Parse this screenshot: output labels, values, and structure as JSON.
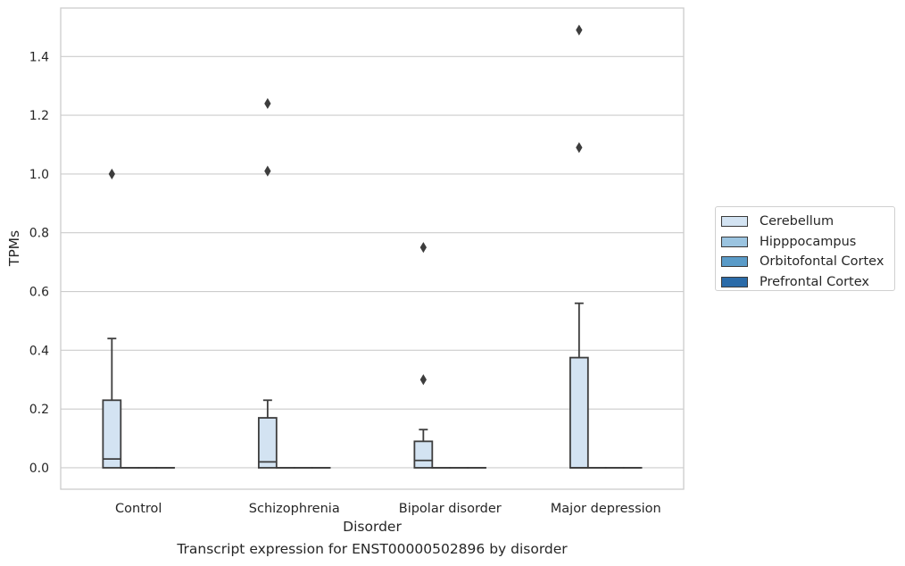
{
  "chart_data": {
    "type": "box",
    "caption": "Transcript expression for ENST00000502896 by disorder",
    "xlabel": "Disorder",
    "ylabel": "TPMs",
    "categories": [
      "Control",
      "Schizophrenia",
      "Bipolar disorder",
      "Major depression"
    ],
    "ylim": [
      -0.073,
      1.565
    ],
    "yticks": [
      0.0,
      0.2,
      0.4,
      0.6,
      0.8,
      1.0,
      1.2,
      1.4
    ],
    "ytick_labels": [
      "0.0",
      "0.2",
      "0.4",
      "0.6",
      "0.8",
      "1.0",
      "1.2",
      "1.4"
    ],
    "grid": "horizontal",
    "legend_placement": "right, outside plot",
    "series": [
      {
        "name": "Cerebellum",
        "color": "#d3e3f2",
        "boxes": [
          {
            "category": "Control",
            "min": 0.0,
            "q1": 0.0,
            "median": 0.03,
            "q3": 0.23,
            "max": 0.44,
            "outliers": [
              1.0
            ]
          },
          {
            "category": "Schizophrenia",
            "min": 0.0,
            "q1": 0.0,
            "median": 0.02,
            "q3": 0.17,
            "max": 0.23,
            "outliers": [
              1.01,
              1.24
            ]
          },
          {
            "category": "Bipolar disorder",
            "min": 0.0,
            "q1": 0.0,
            "median": 0.025,
            "q3": 0.09,
            "max": 0.13,
            "outliers": [
              0.3,
              0.75
            ]
          },
          {
            "category": "Major depression",
            "min": 0.0,
            "q1": 0.0,
            "median": 0.0,
            "q3": 0.375,
            "max": 0.56,
            "outliers": [
              1.09,
              1.49
            ]
          }
        ]
      },
      {
        "name": "Hipppocampus",
        "color": "#9bc4e0",
        "boxes": [
          {
            "category": "Control",
            "min": 0,
            "q1": 0,
            "median": 0,
            "q3": 0,
            "max": 0,
            "outliers": []
          },
          {
            "category": "Schizophrenia",
            "min": 0,
            "q1": 0,
            "median": 0,
            "q3": 0,
            "max": 0,
            "outliers": []
          },
          {
            "category": "Bipolar disorder",
            "min": 0,
            "q1": 0,
            "median": 0,
            "q3": 0,
            "max": 0,
            "outliers": []
          },
          {
            "category": "Major depression",
            "min": 0,
            "q1": 0,
            "median": 0,
            "q3": 0,
            "max": 0,
            "outliers": []
          }
        ]
      },
      {
        "name": "Orbitofontal Cortex",
        "color": "#5a9bc8",
        "boxes": [
          {
            "category": "Control",
            "min": 0,
            "q1": 0,
            "median": 0,
            "q3": 0,
            "max": 0,
            "outliers": []
          },
          {
            "category": "Schizophrenia",
            "min": 0,
            "q1": 0,
            "median": 0,
            "q3": 0,
            "max": 0,
            "outliers": []
          },
          {
            "category": "Bipolar disorder",
            "min": 0,
            "q1": 0,
            "median": 0,
            "q3": 0,
            "max": 0,
            "outliers": []
          },
          {
            "category": "Major depression",
            "min": 0,
            "q1": 0,
            "median": 0,
            "q3": 0,
            "max": 0,
            "outliers": []
          }
        ]
      },
      {
        "name": "Prefrontal Cortex",
        "color": "#2b6ba8",
        "boxes": [
          {
            "category": "Control",
            "min": 0,
            "q1": 0,
            "median": 0,
            "q3": 0,
            "max": 0,
            "outliers": []
          },
          {
            "category": "Schizophrenia",
            "min": 0,
            "q1": 0,
            "median": 0,
            "q3": 0,
            "max": 0,
            "outliers": []
          },
          {
            "category": "Bipolar disorder",
            "min": 0,
            "q1": 0,
            "median": 0,
            "q3": 0,
            "max": 0,
            "outliers": []
          },
          {
            "category": "Major depression",
            "min": 0,
            "q1": 0,
            "median": 0,
            "q3": 0,
            "max": 0,
            "outliers": []
          }
        ]
      }
    ]
  }
}
